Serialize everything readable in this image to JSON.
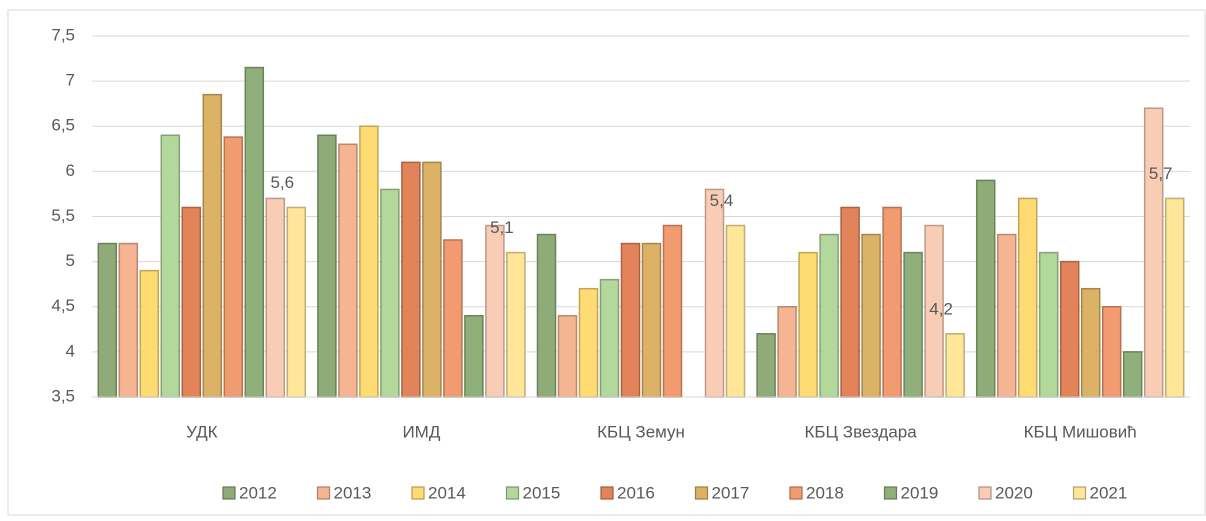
{
  "chart_data": {
    "type": "bar",
    "categories": [
      "УДК",
      "ИМД",
      "КБЦ Земун",
      "КБЦ Звездара",
      "КБЦ Мишовић"
    ],
    "series": [
      {
        "name": "2012",
        "color": "#8fac78",
        "values": [
          5.2,
          6.4,
          5.3,
          4.2,
          5.9
        ]
      },
      {
        "name": "2013",
        "color": "#f6b592",
        "values": [
          5.2,
          6.3,
          4.4,
          4.5,
          5.3
        ]
      },
      {
        "name": "2014",
        "color": "#ffdc73",
        "values": [
          4.9,
          6.5,
          4.7,
          5.1,
          5.7
        ]
      },
      {
        "name": "2015",
        "color": "#b3d89c",
        "values": [
          6.4,
          5.8,
          4.8,
          5.3,
          5.1
        ]
      },
      {
        "name": "2016",
        "color": "#e3835a",
        "values": [
          5.6,
          6.1,
          5.2,
          5.6,
          5.0
        ]
      },
      {
        "name": "2017",
        "color": "#dcb266",
        "values": [
          6.85,
          6.1,
          5.2,
          5.3,
          4.7
        ]
      },
      {
        "name": "2018",
        "color": "#f29a70",
        "values": [
          6.38,
          5.24,
          5.4,
          5.6,
          4.5
        ]
      },
      {
        "name": "2019",
        "color": "#8fb07a",
        "values": [
          7.15,
          4.4,
          null,
          5.1,
          4.0
        ]
      },
      {
        "name": "2020",
        "color": "#f9cdb5",
        "values": [
          5.7,
          5.4,
          5.8,
          5.4,
          6.7
        ]
      },
      {
        "name": "2021",
        "color": "#ffe699",
        "values": [
          5.6,
          5.1,
          5.4,
          4.2,
          5.7
        ],
        "value_labels": [
          "5,6",
          "5,1",
          "5,4",
          "4,2",
          "5,7"
        ]
      }
    ],
    "ylim": [
      3.5,
      7.5
    ],
    "yticks": [
      {
        "value": 3.5,
        "label": "3,5"
      },
      4,
      {
        "value": 4.5,
        "label": "4,5"
      },
      5,
      {
        "value": 5.5,
        "label": "5,5"
      },
      6,
      {
        "value": 6.5,
        "label": "6,5"
      },
      7,
      {
        "value": 7.5,
        "label": "7,5"
      }
    ],
    "grid": true,
    "legend": "bottom"
  }
}
